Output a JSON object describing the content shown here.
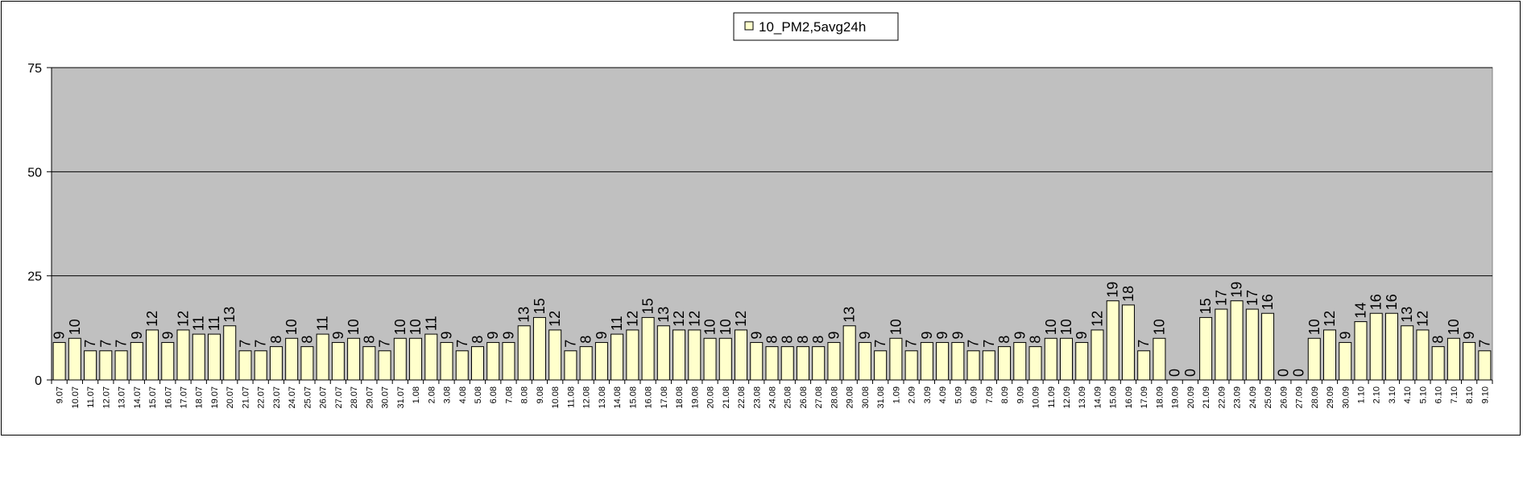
{
  "chart_data": {
    "type": "bar",
    "legend_position": "top-center",
    "grid": true,
    "ylim": [
      0,
      75
    ],
    "yticks": [
      0,
      25,
      50,
      75
    ],
    "colors": {
      "plot_area": "#c0c0c0",
      "bar_fill": "#ffffcc",
      "bar_stroke": "#000000",
      "grid": "#000000"
    },
    "series": [
      {
        "name": "10_PM2,5avg24h",
        "values": [
          9,
          10,
          7,
          7,
          7,
          9,
          12,
          9,
          12,
          11,
          11,
          13,
          7,
          7,
          8,
          10,
          8,
          11,
          9,
          10,
          8,
          7,
          10,
          10,
          11,
          9,
          7,
          8,
          9,
          9,
          13,
          15,
          12,
          7,
          8,
          9,
          11,
          12,
          15,
          13,
          12,
          12,
          10,
          10,
          12,
          9,
          8,
          8,
          8,
          8,
          9,
          13,
          9,
          7,
          10,
          7,
          9,
          9,
          9,
          7,
          7,
          8,
          9,
          8,
          10,
          10,
          9,
          12,
          19,
          18,
          7,
          10,
          0,
          0,
          15,
          17,
          19,
          17,
          16,
          0,
          0,
          10,
          12,
          9,
          14,
          16,
          16,
          13,
          12,
          8,
          10,
          9,
          7
        ],
        "labels": [
          "9",
          "10",
          "7",
          "7",
          "7",
          "9",
          "12",
          "9",
          "12",
          "11",
          "11",
          "13",
          "7",
          "7",
          "8",
          "10",
          "8",
          "11",
          "9",
          "10",
          "8",
          "7",
          "10",
          "10",
          "11",
          "9",
          "7",
          "8",
          "9",
          "9",
          "13",
          "15",
          "12",
          "7",
          "8",
          "9",
          "11",
          "12",
          "15",
          "13",
          "12",
          "12",
          "10",
          "10",
          "12",
          "9",
          "8",
          "8",
          "8",
          "8",
          "9",
          "13",
          "9",
          "7",
          "10",
          "7",
          "9",
          "9",
          "9",
          "7",
          "7",
          "8",
          "9",
          "8",
          "10",
          "10",
          "9",
          "12",
          "19",
          "18",
          "7",
          "10",
          "0",
          "0",
          "15",
          "17",
          "19",
          "17",
          "16",
          "0",
          "0",
          "10",
          "12",
          "9",
          "14",
          "16",
          "16",
          "13",
          "12",
          "8",
          "10",
          "9",
          "7"
        ],
        "shown": [
          true,
          true,
          true,
          true,
          true,
          true,
          true,
          true,
          true,
          true,
          true,
          true,
          true,
          true,
          true,
          true,
          true,
          true,
          true,
          true,
          true,
          true,
          true,
          true,
          true,
          true,
          true,
          true,
          true,
          true,
          true,
          true,
          true,
          true,
          true,
          true,
          true,
          true,
          true,
          true,
          true,
          true,
          true,
          true,
          true,
          true,
          true,
          true,
          true,
          true,
          true,
          true,
          true,
          true,
          true,
          true,
          true,
          true,
          true,
          true,
          true,
          true,
          true,
          true,
          true,
          true,
          true,
          true,
          true,
          true,
          true,
          true,
          true,
          true,
          true,
          true,
          true,
          true,
          true,
          true,
          true,
          true,
          true,
          true,
          true,
          true,
          true,
          true,
          true,
          true,
          true,
          true,
          true
        ]
      }
    ],
    "categories": [
      "9.07",
      "10.07",
      "11.07",
      "12.07",
      "13.07",
      "14.07",
      "15.07",
      "16.07",
      "17.07",
      "18.07",
      "19.07",
      "20.07",
      "21.07",
      "22.07",
      "23.07",
      "24.07",
      "25.07",
      "26.07",
      "27.07",
      "28.07",
      "29.07",
      "30.07",
      "31.07",
      "1.08",
      "2.08",
      "3.08",
      "4.08",
      "5.08",
      "6.08",
      "7.08",
      "8.08",
      "9.08",
      "10.08",
      "11.08",
      "12.08",
      "13.08",
      "14.08",
      "15.08",
      "16.08",
      "17.08",
      "18.08",
      "19.08",
      "20.08",
      "21.08",
      "22.08",
      "23.08",
      "24.08",
      "25.08",
      "26.08",
      "27.08",
      "28.08",
      "29.08",
      "30.08",
      "31.08",
      "1.09",
      "2.09",
      "3.09",
      "4.09",
      "5.09",
      "6.09",
      "7.09",
      "8.09",
      "9.09",
      "10.09",
      "11.09",
      "12.09",
      "13.09",
      "14.09",
      "15.09",
      "16.09",
      "17.09",
      "18.09",
      "19.09",
      "20.09",
      "21.09",
      "22.09",
      "23.09",
      "24.09",
      "25.09",
      "26.09",
      "27.09",
      "28.09",
      "29.09",
      "30.09",
      "1.10",
      "2.10",
      "3.10",
      "4.10",
      "5.10",
      "6.10",
      "7.10",
      "8.10",
      "9.10"
    ]
  }
}
